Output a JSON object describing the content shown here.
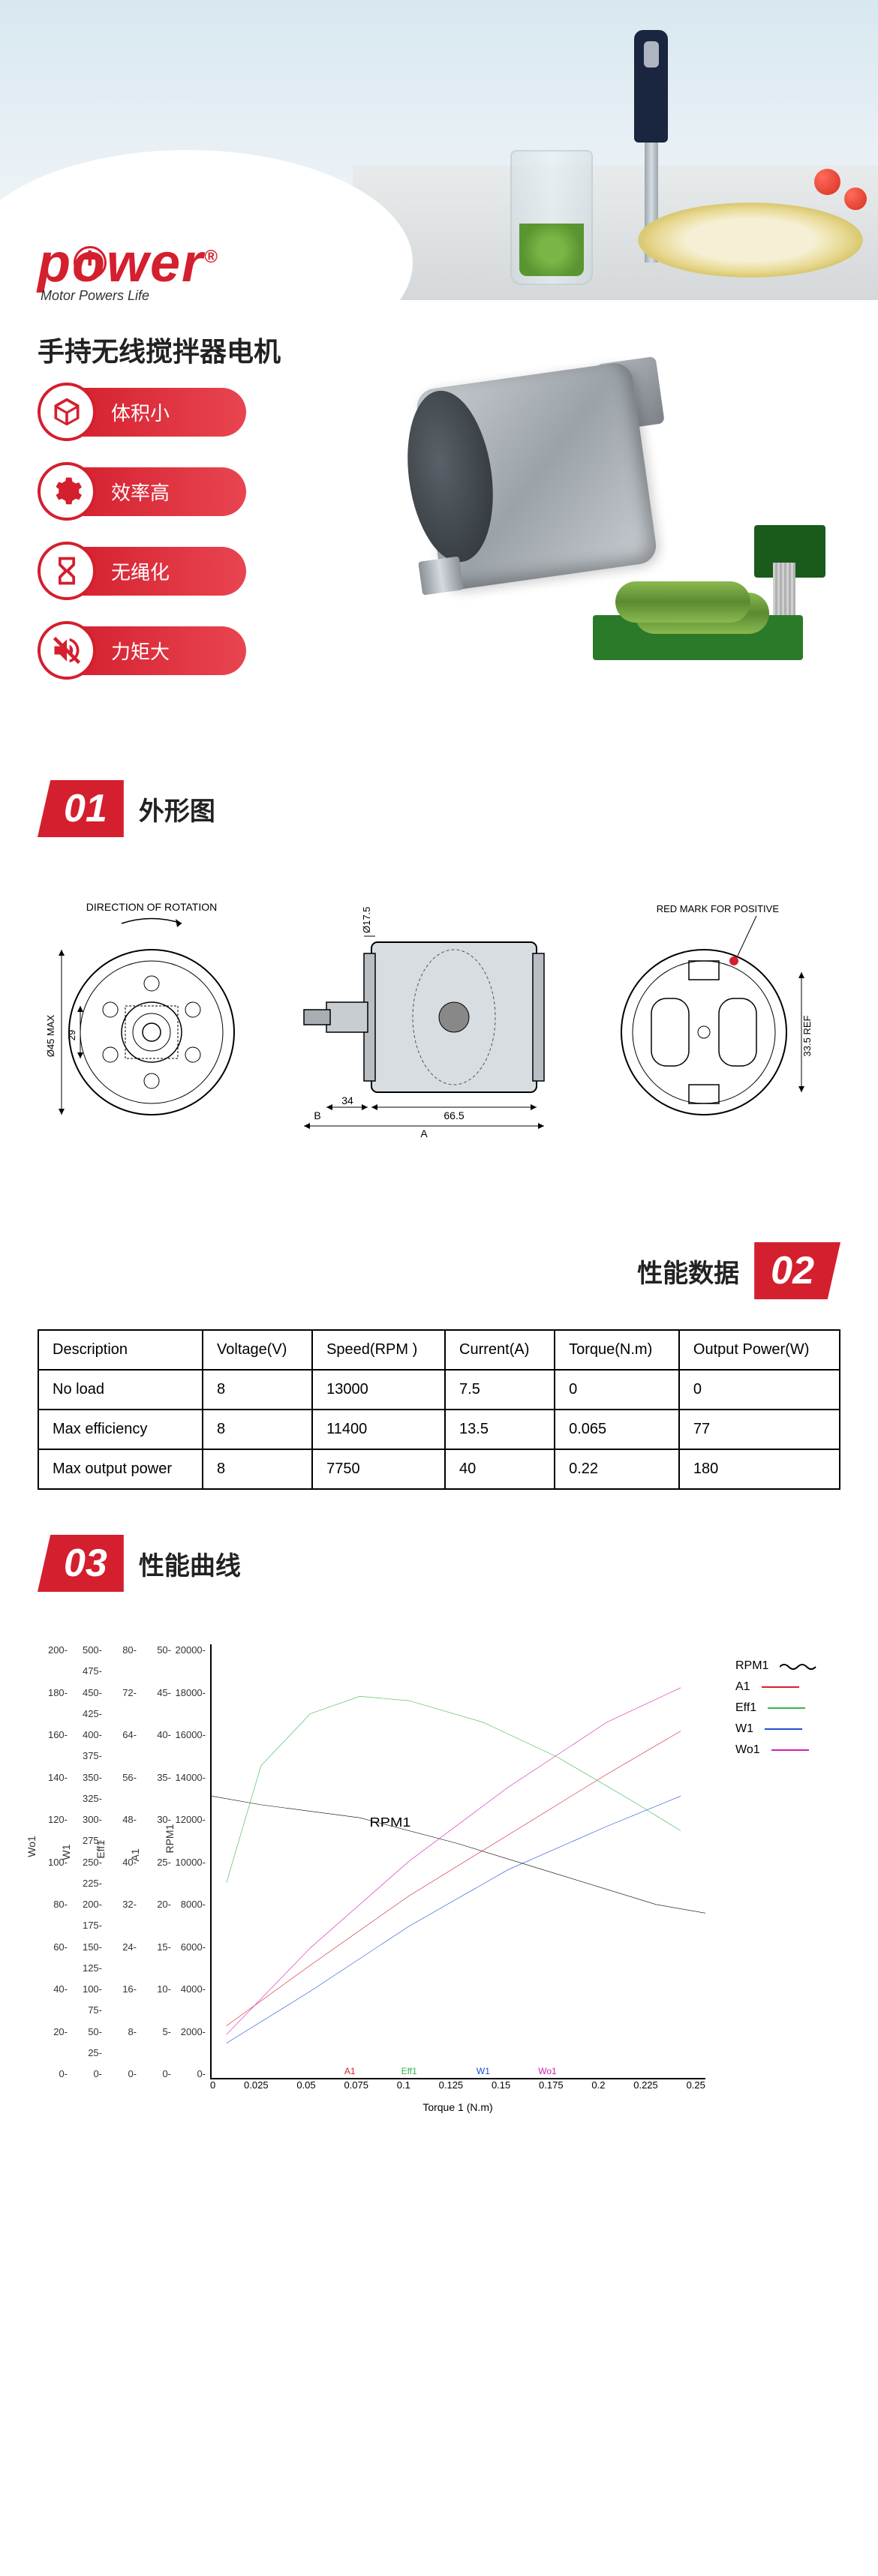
{
  "logo": {
    "text": "power",
    "tagline": "Motor Powers Life",
    "registered": "®"
  },
  "product_title": "手持无线搅拌器电机",
  "features": [
    {
      "icon": "cube",
      "label": "体积小"
    },
    {
      "icon": "gear",
      "label": "效率高"
    },
    {
      "icon": "hourglass",
      "label": "无绳化"
    },
    {
      "icon": "mute",
      "label": "力矩大"
    }
  ],
  "sections": {
    "s01": {
      "num": "01",
      "title": "外形图"
    },
    "s02": {
      "num": "02",
      "title": "性能数据"
    },
    "s03": {
      "num": "03",
      "title": "性能曲线"
    }
  },
  "diagrams": {
    "direction_label": "DIRECTION OF ROTATION",
    "red_mark_label": "RED MARK FOR POSITIVE",
    "dims": {
      "diameter_max": "Ø45 MAX",
      "sq29": "29",
      "d175": "Ø17.5",
      "len_665": "66.5",
      "len_34": "34",
      "dimA": "A",
      "dimB": "B",
      "ref335": "33.5 REF"
    }
  },
  "table": {
    "headers": [
      "Description",
      "Voltage(V)",
      "Speed(RPM )",
      "Current(A)",
      "Torque(N.m)",
      "Output Power(W)"
    ],
    "rows": [
      [
        "No load",
        "8",
        "13000",
        "7.5",
        "0",
        "0"
      ],
      [
        "Max efficiency",
        "8",
        "11400",
        "13.5",
        "0.065",
        "77"
      ],
      [
        "Max output power",
        "8",
        "7750",
        "40",
        "0.22",
        "180"
      ]
    ]
  },
  "chart": {
    "legend": [
      {
        "name": "RPM1",
        "color": "#000000",
        "wavy": true
      },
      {
        "name": "A1",
        "color": "#d41f2e",
        "wavy": false
      },
      {
        "name": "Eff1",
        "color": "#3ab54a",
        "wavy": false
      },
      {
        "name": "W1",
        "color": "#1f4fd4",
        "wavy": false
      },
      {
        "name": "Wo1",
        "color": "#d41fb5",
        "wavy": false
      }
    ],
    "y_axes": [
      {
        "label": "Wo1",
        "ticks": [
          "200-",
          "180-",
          "160-",
          "140-",
          "120-",
          "100-",
          "80-",
          "60-",
          "40-",
          "20-",
          "0-"
        ]
      },
      {
        "label": "W1",
        "ticks": [
          "500-",
          "475-",
          "450-",
          "425-",
          "400-",
          "375-",
          "350-",
          "325-",
          "300-",
          "275-",
          "250-",
          "225-",
          "200-",
          "175-",
          "150-",
          "125-",
          "100-",
          "75-",
          "50-",
          "25-",
          "0-"
        ]
      },
      {
        "label": "Eff1",
        "ticks": [
          "80-",
          "72-",
          "64-",
          "56-",
          "48-",
          "40-",
          "32-",
          "24-",
          "16-",
          "8-",
          "0-"
        ]
      },
      {
        "label": "A1",
        "ticks": [
          "50-",
          "45-",
          "40-",
          "35-",
          "30-",
          "25-",
          "20-",
          "15-",
          "10-",
          "5-",
          "0-"
        ]
      },
      {
        "label": "RPM1",
        "ticks": [
          "20000-",
          "18000-",
          "16000-",
          "14000-",
          "12000-",
          "10000-",
          "8000-",
          "6000-",
          "4000-",
          "2000-",
          "0-"
        ]
      }
    ],
    "x_axis": {
      "label": "Torque 1 (N.m)",
      "ticks": [
        "0",
        "0.025",
        "0.05",
        "0.075",
        "0.1",
        "0.125",
        "0.15",
        "0.175",
        "0.2",
        "0.225",
        "0.25"
      ]
    },
    "x_markers": [
      {
        "label": "A1",
        "color": "#d41f2e",
        "pos": 0.28
      },
      {
        "label": "Eff1",
        "color": "#3ab54a",
        "pos": 0.4
      },
      {
        "label": "W1",
        "color": "#1f4fd4",
        "pos": 0.55
      },
      {
        "label": "Wo1",
        "color": "#d41fb5",
        "pos": 0.68
      }
    ],
    "series": {
      "rpm": {
        "color": "#000000",
        "points": [
          [
            0,
            0.65
          ],
          [
            0.1,
            0.63
          ],
          [
            0.3,
            0.6
          ],
          [
            0.5,
            0.54
          ],
          [
            0.7,
            0.47
          ],
          [
            0.9,
            0.4
          ],
          [
            1.0,
            0.38
          ]
        ],
        "label_pos": [
          0.32,
          0.58
        ]
      },
      "a1": {
        "color": "#d41f2e",
        "points": [
          [
            0.03,
            0.12
          ],
          [
            0.2,
            0.26
          ],
          [
            0.4,
            0.42
          ],
          [
            0.6,
            0.56
          ],
          [
            0.8,
            0.7
          ],
          [
            0.95,
            0.8
          ]
        ]
      },
      "eff": {
        "color": "#3ab54a",
        "points": [
          [
            0.03,
            0.45
          ],
          [
            0.1,
            0.72
          ],
          [
            0.2,
            0.84
          ],
          [
            0.3,
            0.88
          ],
          [
            0.4,
            0.87
          ],
          [
            0.55,
            0.82
          ],
          [
            0.7,
            0.74
          ],
          [
            0.85,
            0.64
          ],
          [
            0.95,
            0.57
          ]
        ]
      },
      "w1": {
        "color": "#1f4fd4",
        "points": [
          [
            0.03,
            0.08
          ],
          [
            0.2,
            0.2
          ],
          [
            0.4,
            0.35
          ],
          [
            0.6,
            0.48
          ],
          [
            0.8,
            0.58
          ],
          [
            0.95,
            0.65
          ]
        ]
      },
      "wo1": {
        "color": "#d41fb5",
        "points": [
          [
            0.03,
            0.1
          ],
          [
            0.2,
            0.3
          ],
          [
            0.4,
            0.5
          ],
          [
            0.6,
            0.67
          ],
          [
            0.8,
            0.82
          ],
          [
            0.95,
            0.9
          ]
        ]
      }
    },
    "plot_bg": "#ffffff",
    "grid_color": "rgba(0,0,0,0)"
  }
}
